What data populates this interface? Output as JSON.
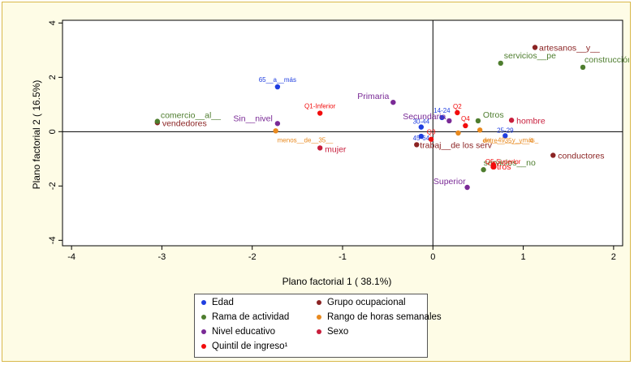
{
  "chart_data": {
    "type": "scatter",
    "xlabel": "Plano factorial 1  ( 38.1%)",
    "ylabel": "Plano factorial 2  ( 16.5%)",
    "xlim": [
      -4.1,
      2.1
    ],
    "ylim": [
      -4.2,
      4.1
    ],
    "x_ticks": [
      "-4",
      "-3",
      "-2",
      "-1",
      "0",
      "1",
      "2"
    ],
    "y_ticks": [
      "-4",
      "-2",
      "0",
      "2",
      "4"
    ],
    "x_tick_values": [
      -4,
      -3,
      -2,
      -1,
      0,
      1,
      2
    ],
    "y_tick_values": [
      -4,
      -2,
      0,
      2,
      4
    ],
    "grid": false,
    "legend_position": "bottom",
    "series": [
      {
        "name": "Edad",
        "color": "#1f3ee0",
        "points": [
          {
            "label": "65__a__más",
            "x": -1.72,
            "y": 1.65
          },
          {
            "label": "14-24",
            "x": 0.1,
            "y": 0.52
          },
          {
            "label": "30-44",
            "x": -0.13,
            "y": 0.17
          },
          {
            "label": "45-64",
            "x": -0.13,
            "y": -0.17
          },
          {
            "label": "25-29",
            "x": 0.8,
            "y": -0.15
          }
        ]
      },
      {
        "name": "Grupo ocupacional",
        "color": "#8b2323",
        "points": [
          {
            "label": "artesanos__y__",
            "x": 1.13,
            "y": 3.1
          },
          {
            "label": "vendedores",
            "x": -3.05,
            "y": 0.33
          },
          {
            "label": "trabaj__de los serv",
            "x": -0.18,
            "y": -0.48
          },
          {
            "label": "conductores",
            "x": 1.33,
            "y": -0.87
          }
        ]
      },
      {
        "name": "Rama de actividad",
        "color": "#4e7d2e",
        "points": [
          {
            "label": "servicios__pe",
            "x": 0.75,
            "y": 2.52
          },
          {
            "label": "construcción",
            "x": 1.66,
            "y": 2.37
          },
          {
            "label": "comercio__al__",
            "x": -3.05,
            "y": 0.38
          },
          {
            "label": "Otros",
            "x": 0.5,
            "y": 0.4
          },
          {
            "label": "servicios__no",
            "x": 0.56,
            "y": -1.4
          }
        ]
      },
      {
        "name": "Rango de horas semanales",
        "color": "#e8891e",
        "points": [
          {
            "label": "menos__de__35__",
            "x": -1.74,
            "y": 0.03
          },
          {
            "label": "de__49__y__más_",
            "x": 0.52,
            "y": 0.06
          },
          {
            "label": "entre__35__y__4",
            "x": 0.28,
            "y": -0.05
          }
        ]
      },
      {
        "name": "Nivel educativo",
        "color": "#7a2a96",
        "points": [
          {
            "label": "Primaria",
            "x": -0.44,
            "y": 1.08
          },
          {
            "label": "Sin__nivel",
            "x": -1.72,
            "y": 0.3
          },
          {
            "label": "Secundaria",
            "x": 0.18,
            "y": 0.4
          },
          {
            "label": "Superior",
            "x": 0.38,
            "y": -2.05
          }
        ]
      },
      {
        "name": "Sexo",
        "color": "#c81e3c",
        "points": [
          {
            "label": "hombre",
            "x": 0.87,
            "y": 0.42
          },
          {
            "label": "mujer",
            "x": -1.25,
            "y": -0.6
          }
        ]
      },
      {
        "name": "Quintil de ingreso¹",
        "color": "#f20c0c",
        "points": [
          {
            "label": "Q1-Inferior",
            "x": -1.25,
            "y": 0.68
          },
          {
            "label": "Q2",
            "x": 0.27,
            "y": 0.7
          },
          {
            "label": "Q3",
            "x": -0.02,
            "y": -0.28
          },
          {
            "label": "Q4",
            "x": 0.36,
            "y": 0.22
          },
          {
            "label": "Q5-Superior",
            "x": 0.67,
            "y": -1.28
          },
          {
            "label": "Otros",
            "x": 0.67,
            "y": -1.22
          }
        ]
      }
    ]
  },
  "legend": {
    "items": [
      {
        "label": "Edad",
        "color": "#1f3ee0"
      },
      {
        "label": "Grupo ocupacional",
        "color": "#8b2323"
      },
      {
        "label": "Rama de actividad",
        "color": "#4e7d2e"
      },
      {
        "label": "Rango de horas semanales",
        "color": "#e8891e"
      },
      {
        "label": "Nivel educativo",
        "color": "#7a2a96"
      },
      {
        "label": "Sexo",
        "color": "#c81e3c"
      },
      {
        "label": "Quintil de ingreso¹",
        "color": "#f20c0c"
      }
    ]
  }
}
